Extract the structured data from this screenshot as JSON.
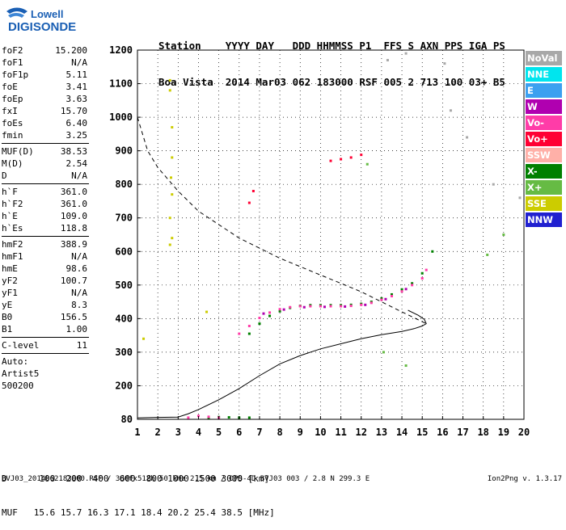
{
  "logo": {
    "top": "Lowell",
    "bottom": "DIGISONDE"
  },
  "header": {
    "line1": "Station    YYYY DAY   DDD HHMMSS P1  FFS S AXN PPS IGA PS",
    "line2": "Boa Vista  2014 Mar03 062 183000 RSF 005 2 713 100 03+ B5"
  },
  "params": [
    {
      "name": "foF2",
      "value": "15.200",
      "sep_after": false
    },
    {
      "name": "foF1",
      "value": "N/A",
      "sep_after": false
    },
    {
      "name": "foF1p",
      "value": "5.11",
      "sep_after": false
    },
    {
      "name": "foE",
      "value": "3.41",
      "sep_after": false
    },
    {
      "name": "foEp",
      "value": "3.63",
      "sep_after": false
    },
    {
      "name": "fxI",
      "value": "15.70",
      "sep_after": false
    },
    {
      "name": "foEs",
      "value": "6.40",
      "sep_after": false
    },
    {
      "name": "fmin",
      "value": "3.25",
      "sep_after": true
    },
    {
      "name": "MUF(D)",
      "value": "38.53",
      "sep_after": false
    },
    {
      "name": "M(D)",
      "value": "2.54",
      "sep_after": false
    },
    {
      "name": "D",
      "value": "N/A",
      "sep_after": true
    },
    {
      "name": "h`F",
      "value": "361.0",
      "sep_after": false
    },
    {
      "name": "h`F2",
      "value": "361.0",
      "sep_after": false
    },
    {
      "name": "h`E",
      "value": "109.0",
      "sep_after": false
    },
    {
      "name": "h`Es",
      "value": "118.8",
      "sep_after": true
    },
    {
      "name": "hmF2",
      "value": "388.9",
      "sep_after": false
    },
    {
      "name": "hmF1",
      "value": "N/A",
      "sep_after": false
    },
    {
      "name": "hmE",
      "value": "98.6",
      "sep_after": false
    },
    {
      "name": "yF2",
      "value": "100.7",
      "sep_after": false
    },
    {
      "name": "yF1",
      "value": "N/A",
      "sep_after": false
    },
    {
      "name": "yE",
      "value": "8.3",
      "sep_after": false
    },
    {
      "name": "B0",
      "value": "156.5",
      "sep_after": false
    },
    {
      "name": "B1",
      "value": "1.00",
      "sep_after": true
    },
    {
      "name": "C-level",
      "value": "11",
      "sep_after": true
    }
  ],
  "autoscaling": {
    "line1": "Auto:",
    "line2": "Artist5",
    "line3": "500200"
  },
  "legend": [
    {
      "label": "NoVal",
      "color": "#a8a8a8"
    },
    {
      "label": "NNE",
      "color": "#00e5ee"
    },
    {
      "label": "E",
      "color": "#3ca0f0"
    },
    {
      "label": "W",
      "color": "#b000b0"
    },
    {
      "label": "Vo-",
      "color": "#ff3ca8"
    },
    {
      "label": "Vo+",
      "color": "#ff0033"
    },
    {
      "label": "SSW",
      "color": "#ffb0a8"
    },
    {
      "label": "X-",
      "color": "#008000"
    },
    {
      "label": "X+",
      "color": "#66bb44"
    },
    {
      "label": "SSE",
      "color": "#cccc00"
    },
    {
      "label": "NNW",
      "color": "#2020d0"
    }
  ],
  "muf_table": {
    "d_line": "D      100  200  400  600  800 1000 1500 3000 [km]",
    "muf_line": "MUF   15.6 15.7 16.3 17.1 18.4 20.2 25.4 38.5 [MHz]"
  },
  "footer": "BVJ03_2014062183000.RSF / 380fx512h 50 kHz 2.5 km / DPS-4D BVJ03 003 / 2.8 N 299.3 E",
  "version": "Ion2Png v. 1.3.17",
  "chart_data": {
    "type": "scatter",
    "x_ticks": [
      "1",
      "2",
      "3",
      "4",
      "5",
      "6",
      "7",
      "8",
      "9",
      "10",
      "11",
      "12",
      "13",
      "14",
      "15",
      "16",
      "17",
      "18",
      "19",
      "20"
    ],
    "y_ticks": [
      "80",
      "200",
      "300",
      "400",
      "500",
      "600",
      "700",
      "800",
      "900",
      "1000",
      "1100",
      "1200"
    ],
    "xlim": [
      1,
      20
    ],
    "ylim": [
      80,
      1200
    ],
    "grid": true,
    "legend_position": "right",
    "series": [
      {
        "name": "X-",
        "color": "#008000",
        "points": [
          [
            6.5,
            355
          ],
          [
            7,
            385
          ],
          [
            7.5,
            408
          ],
          [
            8,
            422
          ],
          [
            8.5,
            432
          ],
          [
            9,
            438
          ],
          [
            9.5,
            440
          ],
          [
            10,
            440
          ],
          [
            10.5,
            440
          ],
          [
            11,
            440
          ],
          [
            11.5,
            441
          ],
          [
            12,
            444
          ],
          [
            12.5,
            450
          ],
          [
            13,
            460
          ],
          [
            13.5,
            472
          ],
          [
            14,
            487
          ],
          [
            14.5,
            505
          ],
          [
            15,
            535
          ],
          [
            15.5,
            600
          ],
          [
            4.5,
            85
          ],
          [
            5,
            88
          ],
          [
            5.5,
            87
          ],
          [
            6,
            86
          ],
          [
            6.5,
            86
          ]
        ]
      },
      {
        "name": "Vo-",
        "color": "#ff3ca8",
        "points": [
          [
            6,
            355
          ],
          [
            6.5,
            378
          ],
          [
            7,
            402
          ],
          [
            7.5,
            418
          ],
          [
            8,
            428
          ],
          [
            8.5,
            434
          ],
          [
            9,
            437
          ],
          [
            9.5,
            437
          ],
          [
            10,
            437
          ],
          [
            10.5,
            437
          ],
          [
            11,
            437
          ],
          [
            11.5,
            438
          ],
          [
            12,
            441
          ],
          [
            12.5,
            447
          ],
          [
            13,
            456
          ],
          [
            13.5,
            467
          ],
          [
            14,
            481
          ],
          [
            14.5,
            500
          ],
          [
            15,
            520
          ],
          [
            15.2,
            545
          ],
          [
            3.5,
            86
          ],
          [
            4,
            92
          ],
          [
            4.5,
            89
          ],
          [
            5,
            86
          ]
        ]
      },
      {
        "name": "Vo+",
        "color": "#ff0033",
        "points": [
          [
            10.5,
            870
          ],
          [
            11,
            875
          ],
          [
            11.5,
            880
          ],
          [
            12,
            888
          ],
          [
            6.5,
            745
          ],
          [
            6.7,
            780
          ]
        ]
      },
      {
        "name": "W",
        "color": "#b000b0",
        "points": [
          [
            7.2,
            415
          ],
          [
            8.2,
            427
          ],
          [
            9.2,
            434
          ],
          [
            10.2,
            435
          ],
          [
            11.2,
            436
          ],
          [
            12.2,
            441
          ],
          [
            13.2,
            458
          ],
          [
            14.2,
            488
          ]
        ]
      },
      {
        "name": "SSE",
        "color": "#cccc00",
        "points": [
          [
            2.6,
            1110
          ],
          [
            2.6,
            1080
          ],
          [
            2.7,
            970
          ],
          [
            2.7,
            880
          ],
          [
            2.65,
            820
          ],
          [
            2.7,
            770
          ],
          [
            2.6,
            700
          ],
          [
            2.7,
            640
          ],
          [
            2.6,
            620
          ],
          [
            1.3,
            340
          ],
          [
            4.4,
            420
          ]
        ]
      },
      {
        "name": "NoVal",
        "color": "#a8a8a8",
        "points": [
          [
            16.1,
            1160
          ],
          [
            16.4,
            1020
          ],
          [
            17.2,
            940
          ],
          [
            18.5,
            800
          ],
          [
            19.8,
            760
          ],
          [
            13.3,
            1170
          ],
          [
            14.2,
            1190
          ]
        ]
      },
      {
        "name": "X+",
        "color": "#66bb44",
        "points": [
          [
            19,
            650
          ],
          [
            18.2,
            590
          ],
          [
            12.3,
            860
          ],
          [
            13.1,
            300
          ],
          [
            14.2,
            260
          ]
        ]
      }
    ],
    "virtual_height_trace": [
      [
        1,
        85
      ],
      [
        2,
        87
      ],
      [
        3,
        88
      ],
      [
        3.5,
        100
      ],
      [
        4,
        115
      ],
      [
        5,
        150
      ],
      [
        6,
        190
      ],
      [
        7,
        230
      ],
      [
        8,
        265
      ],
      [
        9,
        290
      ],
      [
        10,
        310
      ],
      [
        11,
        325
      ],
      [
        12,
        340
      ],
      [
        13,
        352
      ],
      [
        14,
        362
      ],
      [
        14.6,
        370
      ],
      [
        15,
        378
      ],
      [
        15.2,
        385
      ],
      [
        15.1,
        398
      ],
      [
        14.8,
        410
      ],
      [
        14.3,
        425
      ]
    ],
    "plasma_profile_dashed": [
      [
        1,
        1000
      ],
      [
        1.5,
        900
      ],
      [
        2,
        850
      ],
      [
        3,
        780
      ],
      [
        4,
        720
      ],
      [
        5,
        680
      ],
      [
        6,
        640
      ],
      [
        7,
        610
      ],
      [
        8,
        580
      ],
      [
        9,
        555
      ],
      [
        10,
        530
      ],
      [
        11,
        505
      ],
      [
        12,
        480
      ],
      [
        13,
        450
      ],
      [
        14,
        420
      ],
      [
        15.2,
        385
      ]
    ]
  }
}
